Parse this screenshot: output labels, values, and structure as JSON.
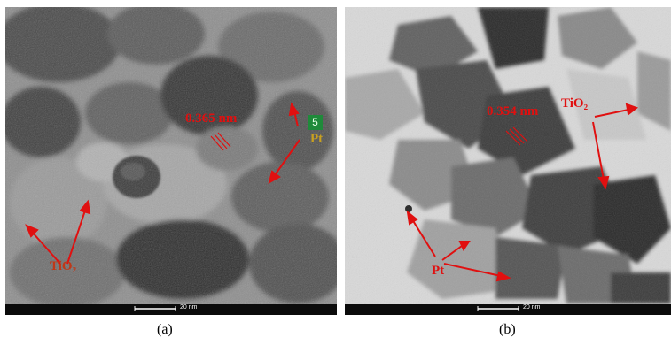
{
  "panel_a": {
    "lattice_label": "0.365 nm",
    "pt_label": "Pt",
    "tio2_label": "TiO₂",
    "badge_label": "5",
    "scale_label": "20 nm",
    "caption": "(a)"
  },
  "panel_b": {
    "lattice_label": "0.354 nm",
    "tio2_label": "TiO₂",
    "pt_label": "Pt",
    "scale_label": "20 nm",
    "caption": "(b)"
  },
  "colors": {
    "annotation": "#e01010",
    "badge": "#1f8a3a",
    "scalebar_bg": "#0b0b0b"
  }
}
